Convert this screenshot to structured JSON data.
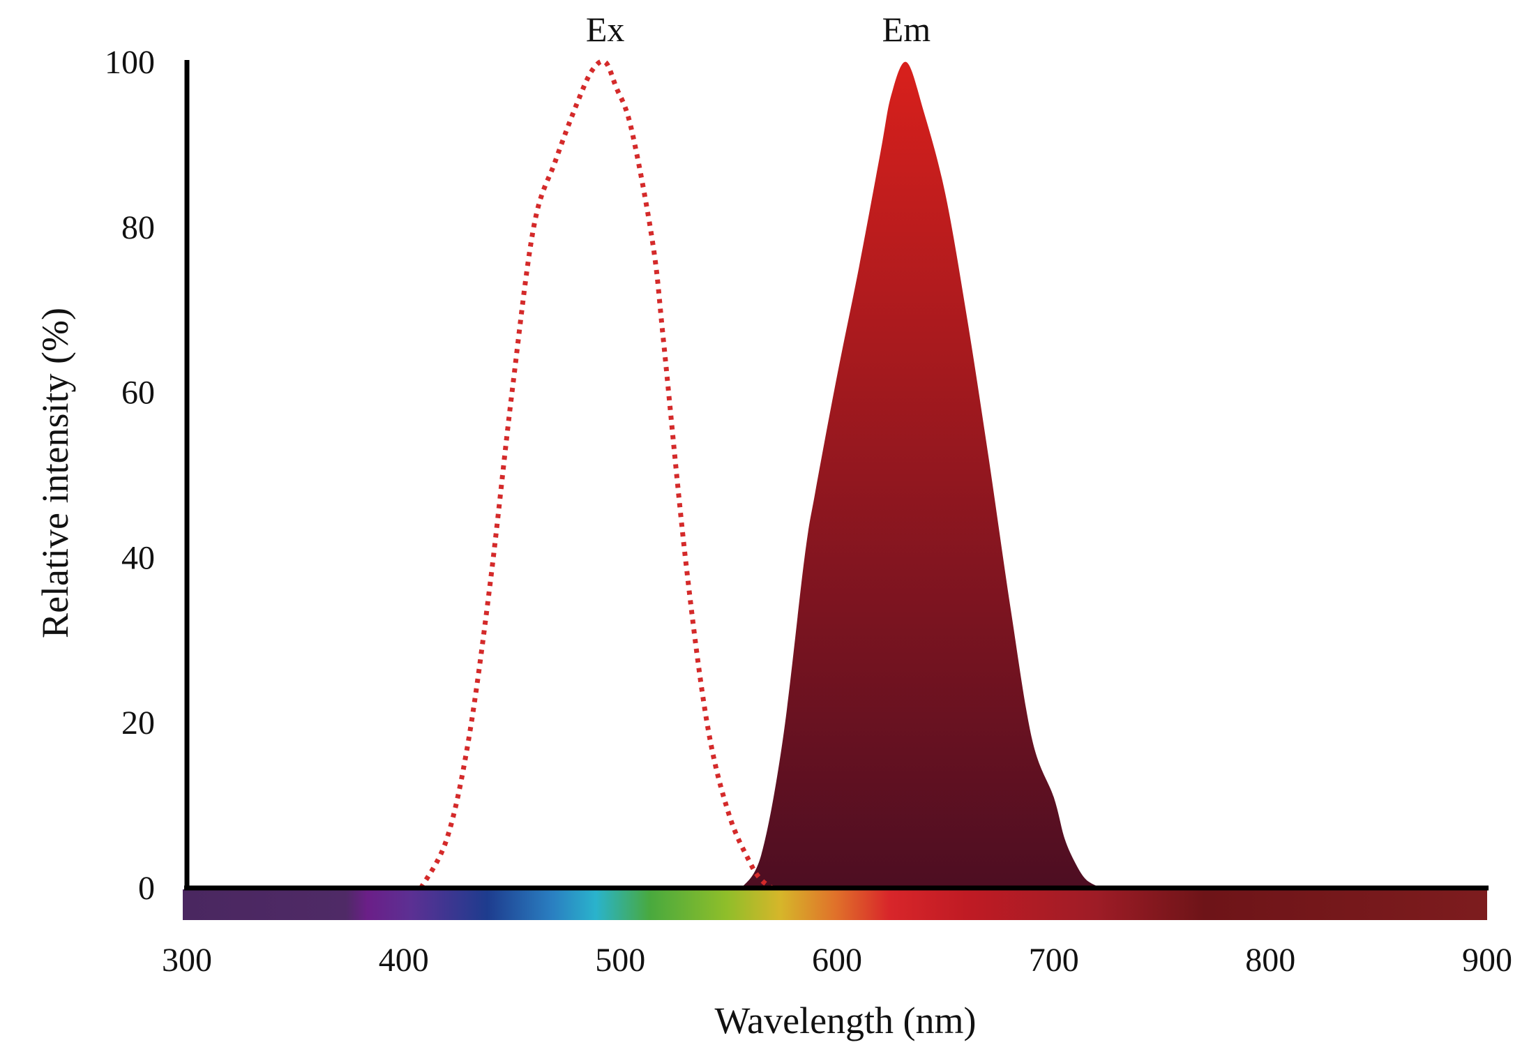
{
  "chart_data": {
    "type": "area",
    "xlabel": "Wavelength (nm)",
    "ylabel": "Relative intensity (%)",
    "xlim": [
      300,
      900
    ],
    "ylim": [
      0,
      100
    ],
    "x_ticks": [
      300,
      400,
      500,
      600,
      700,
      800,
      900
    ],
    "y_ticks": [
      0,
      20,
      40,
      60,
      80,
      100
    ],
    "grid": false,
    "series": [
      {
        "name": "Ex",
        "style": "dotted-line",
        "color": "#d42a2a",
        "peak_wavelength": 493,
        "x": [
          408,
          420,
          430,
          440,
          450,
          460,
          470,
          480,
          487,
          493,
          498,
          505,
          515,
          520,
          530,
          540,
          550,
          560,
          565,
          570
        ],
        "y": [
          0,
          6,
          18,
          37,
          60,
          80,
          88,
          95,
          99,
          100,
          97,
          92,
          78,
          66,
          40,
          20,
          9,
          3,
          1,
          0
        ]
      },
      {
        "name": "Em",
        "style": "gradient-fill",
        "color_top": "#d8201c",
        "color_bottom": "#4d0e22",
        "peak_wavelength": 632,
        "x": [
          556,
          565,
          575,
          585,
          590,
          600,
          610,
          620,
          625,
          632,
          640,
          650,
          660,
          670,
          680,
          690,
          700,
          705,
          710,
          715,
          722
        ],
        "y": [
          0,
          4,
          18,
          40,
          48,
          62,
          75,
          89,
          96,
          100,
          94,
          84,
          69,
          52,
          34,
          18,
          11,
          6,
          3,
          1,
          0
        ]
      }
    ],
    "spectrum_bar": [
      {
        "nm": 300,
        "color": "#4a2760"
      },
      {
        "nm": 375,
        "color": "#4f2a66"
      },
      {
        "nm": 385,
        "color": "#6b1f88"
      },
      {
        "nm": 405,
        "color": "#5c3093"
      },
      {
        "nm": 440,
        "color": "#1e3c8e"
      },
      {
        "nm": 470,
        "color": "#2a7fc1"
      },
      {
        "nm": 490,
        "color": "#2ab3cc"
      },
      {
        "nm": 515,
        "color": "#49a93e"
      },
      {
        "nm": 550,
        "color": "#8fbe2a"
      },
      {
        "nm": 575,
        "color": "#d6b62a"
      },
      {
        "nm": 600,
        "color": "#e0722a"
      },
      {
        "nm": 625,
        "color": "#d8262a"
      },
      {
        "nm": 660,
        "color": "#c01b24"
      },
      {
        "nm": 720,
        "color": "#9e1c26"
      },
      {
        "nm": 770,
        "color": "#6e1418"
      },
      {
        "nm": 900,
        "color": "#7d1c1e"
      }
    ]
  }
}
